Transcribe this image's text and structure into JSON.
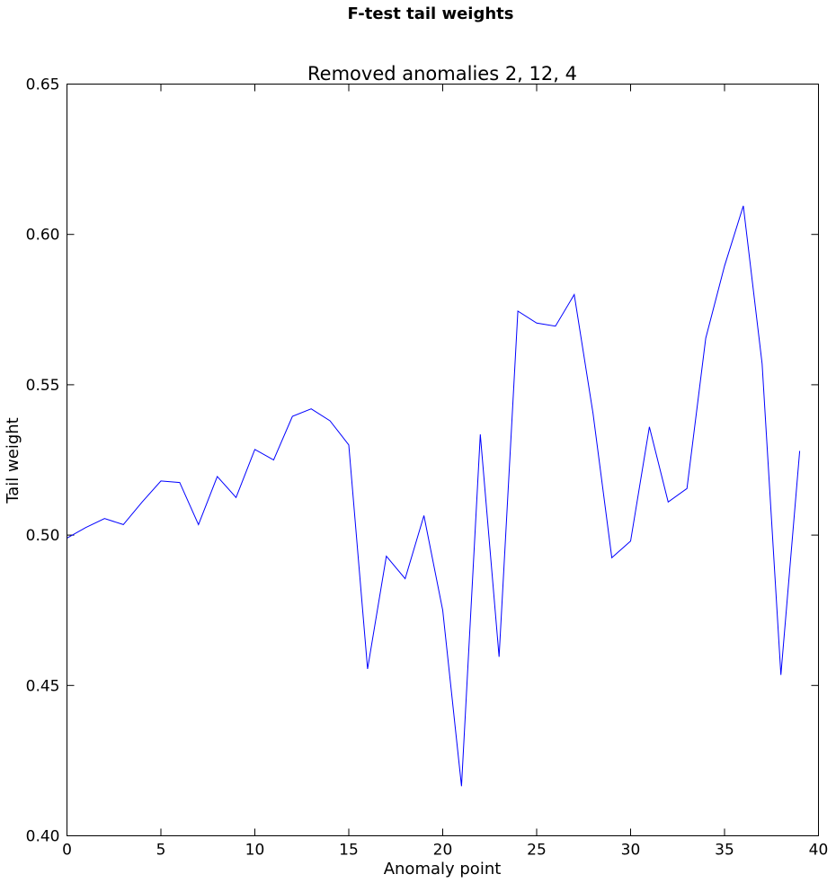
{
  "chart_data": {
    "type": "line",
    "suptitle": "F-test tail weights",
    "title": "Removed anomalies 2, 12, 4",
    "xlabel": "Anomaly point",
    "ylabel": "Tail weight",
    "xlim": [
      0,
      40
    ],
    "ylim": [
      0.4,
      0.65
    ],
    "xticks": [
      "0",
      "5",
      "10",
      "15",
      "20",
      "25",
      "30",
      "35",
      "40"
    ],
    "yticks": [
      "0.40",
      "0.45",
      "0.50",
      "0.55",
      "0.60",
      "0.65"
    ],
    "grid": false,
    "series_color": "#0000ff",
    "x": [
      0,
      1,
      2,
      3,
      4,
      5,
      6,
      7,
      8,
      9,
      10,
      11,
      12,
      13,
      14,
      15,
      16,
      17,
      18,
      19,
      20,
      21,
      22,
      23,
      24,
      25,
      26,
      27,
      28,
      29,
      30,
      31,
      32,
      33,
      34,
      35,
      36,
      37,
      38,
      39
    ],
    "y": [
      0.499,
      0.5025,
      0.5055,
      0.5035,
      0.511,
      0.518,
      0.5175,
      0.5035,
      0.5195,
      0.5125,
      0.5285,
      0.525,
      0.5395,
      0.542,
      0.538,
      0.53,
      0.4555,
      0.493,
      0.4855,
      0.5065,
      0.475,
      0.4165,
      0.5335,
      0.4595,
      0.5745,
      0.5705,
      0.5695,
      0.58,
      0.5405,
      0.4925,
      0.498,
      0.536,
      0.511,
      0.5155,
      0.5655,
      0.5895,
      0.6095,
      0.557,
      0.4535,
      0.528
    ]
  }
}
